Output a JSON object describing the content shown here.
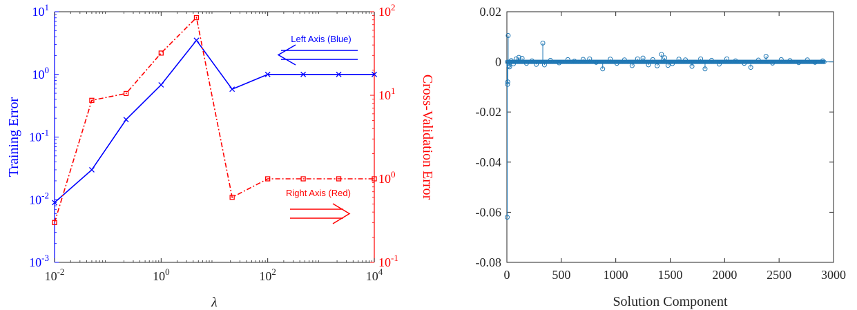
{
  "chart_data": [
    {
      "type": "line",
      "title": "",
      "xlabel": "λ",
      "ylabel_left": "Training Error",
      "ylabel_right": "Cross-Validation Error",
      "x_scale": "log",
      "y_left_scale": "log",
      "y_right_scale": "log",
      "xlim": [
        0.01,
        10000
      ],
      "ylim_left": [
        0.001,
        10
      ],
      "ylim_right": [
        0.1,
        100
      ],
      "x_ticks": [
        {
          "value": 0.01,
          "base": "10",
          "exp": "-2"
        },
        {
          "value": 1,
          "base": "10",
          "exp": "0"
        },
        {
          "value": 100,
          "base": "10",
          "exp": "2"
        },
        {
          "value": 10000,
          "base": "10",
          "exp": "4"
        }
      ],
      "y_left_ticks": [
        {
          "value": 0.001,
          "base": "10",
          "exp": "-3"
        },
        {
          "value": 0.01,
          "base": "10",
          "exp": "-2"
        },
        {
          "value": 0.1,
          "base": "10",
          "exp": "-1"
        },
        {
          "value": 1,
          "base": "10",
          "exp": "0"
        },
        {
          "value": 10,
          "base": "10",
          "exp": "1"
        }
      ],
      "y_right_ticks": [
        {
          "value": 0.1,
          "base": "10",
          "exp": "-1"
        },
        {
          "value": 1,
          "base": "10",
          "exp": "0"
        },
        {
          "value": 10,
          "base": "10",
          "exp": "1"
        },
        {
          "value": 100,
          "base": "10",
          "exp": "2"
        }
      ],
      "series": [
        {
          "axis": "left",
          "color": "#0000ff",
          "marker": "x",
          "linestyle": "solid",
          "x": [
            0.01,
            0.05,
            0.22,
            1,
            4.6,
            21.5,
            100,
            464,
            2154,
            10000
          ],
          "y": [
            0.009,
            0.03,
            0.19,
            0.68,
            3.5,
            0.58,
            1.0,
            1.0,
            1.0,
            1.0
          ]
        },
        {
          "axis": "right",
          "color": "#ff0000",
          "marker": "square",
          "linestyle": "dashdot",
          "x": [
            0.01,
            0.05,
            0.22,
            1,
            4.6,
            21.5,
            100,
            464,
            2154,
            10000
          ],
          "y": [
            0.3,
            8.7,
            10.5,
            32,
            85,
            0.6,
            1.0,
            1.0,
            1.0,
            1.0
          ]
        }
      ],
      "annotations": [
        {
          "text": "Left Axis (Blue)",
          "color": "#0000ff",
          "arrow": "left"
        },
        {
          "text": "Right Axis (Red)",
          "color": "#ff0000",
          "arrow": "right"
        }
      ]
    },
    {
      "type": "scatter",
      "style": "stem",
      "title": "",
      "xlabel": "Solution Component",
      "ylabel": "",
      "xlim": [
        0,
        3000
      ],
      "ylim": [
        -0.08,
        0.02
      ],
      "x_ticks": [
        "0",
        "500",
        "1000",
        "1500",
        "2000",
        "2500",
        "3000"
      ],
      "y_ticks": [
        "0.02",
        "0",
        "-0.02",
        "-0.04",
        "-0.06",
        "-0.08"
      ],
      "color": "#1f77b4",
      "points": [
        [
          3,
          -0.062
        ],
        [
          6,
          -0.009
        ],
        [
          8,
          -0.008
        ],
        [
          12,
          0.0105
        ],
        [
          18,
          -0.0015
        ],
        [
          25,
          -0.002
        ],
        [
          40,
          0.0005
        ],
        [
          60,
          -0.0008
        ],
        [
          85,
          0.0012
        ],
        [
          110,
          0.0018
        ],
        [
          140,
          0.0014
        ],
        [
          180,
          -0.0006
        ],
        [
          230,
          0.0004
        ],
        [
          270,
          -0.001
        ],
        [
          330,
          0.0075
        ],
        [
          345,
          -0.0012
        ],
        [
          400,
          0.0006
        ],
        [
          480,
          -0.0004
        ],
        [
          560,
          0.0009
        ],
        [
          620,
          0.0003
        ],
        [
          700,
          0.001
        ],
        [
          760,
          0.0012
        ],
        [
          820,
          -0.0002
        ],
        [
          880,
          -0.0028
        ],
        [
          950,
          0.0011
        ],
        [
          1010,
          -0.0006
        ],
        [
          1080,
          0.0008
        ],
        [
          1150,
          -0.0015
        ],
        [
          1200,
          0.0012
        ],
        [
          1250,
          0.0015
        ],
        [
          1300,
          -0.0012
        ],
        [
          1340,
          0.0009
        ],
        [
          1380,
          -0.0016
        ],
        [
          1420,
          0.003
        ],
        [
          1450,
          0.0016
        ],
        [
          1480,
          -0.0014
        ],
        [
          1520,
          -0.0007
        ],
        [
          1580,
          0.0011
        ],
        [
          1640,
          0.0008
        ],
        [
          1700,
          -0.0018
        ],
        [
          1780,
          0.0012
        ],
        [
          1820,
          -0.0028
        ],
        [
          1880,
          0.0006
        ],
        [
          1950,
          -0.0009
        ],
        [
          2020,
          0.0012
        ],
        [
          2100,
          0.0004
        ],
        [
          2180,
          -0.0006
        ],
        [
          2240,
          -0.0022
        ],
        [
          2310,
          0.0007
        ],
        [
          2380,
          0.0022
        ],
        [
          2440,
          -0.0005
        ],
        [
          2520,
          0.0009
        ],
        [
          2600,
          0.0005
        ],
        [
          2680,
          -0.0003
        ],
        [
          2760,
          0.0008
        ],
        [
          2830,
          -0.0002
        ],
        [
          2900,
          0.0004
        ]
      ]
    }
  ]
}
